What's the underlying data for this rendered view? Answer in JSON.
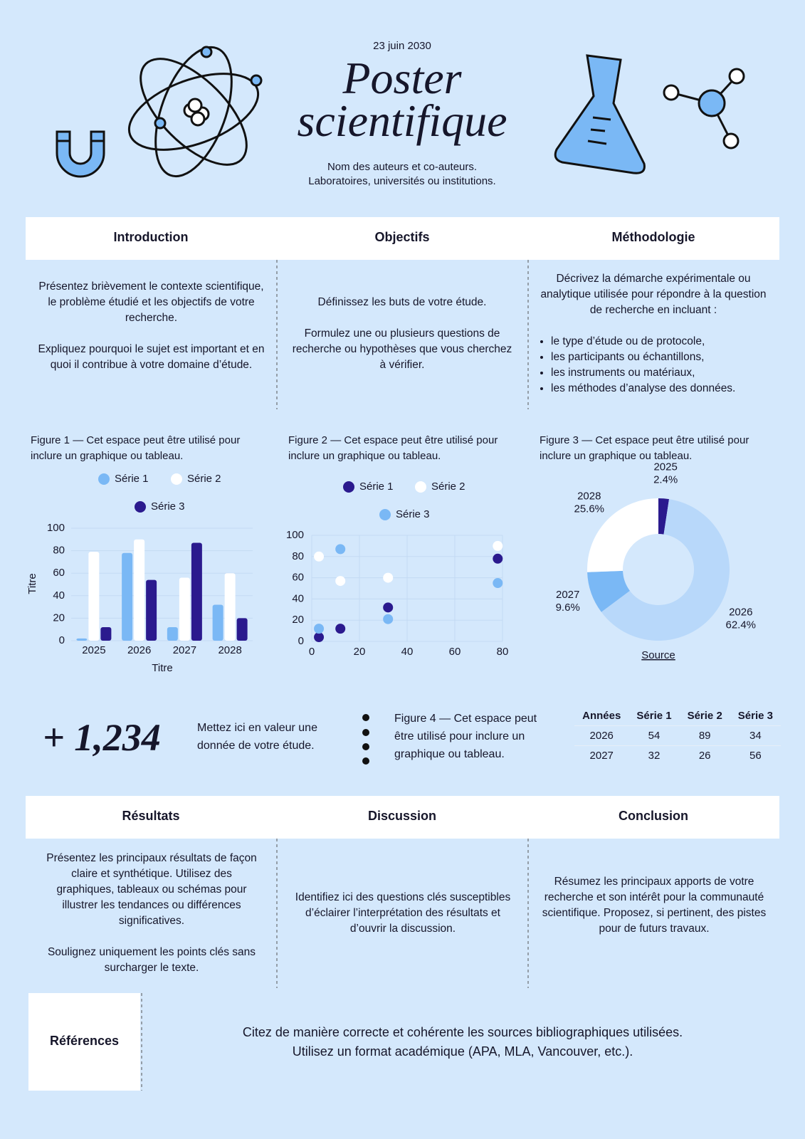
{
  "header": {
    "date": "23 juin 2030",
    "title": [
      "Poster",
      "scientifique"
    ],
    "authors": [
      "Nom des auteurs et co-auteurs.",
      "Laboratoires, universités ou institutions."
    ]
  },
  "sections_top": [
    {
      "heading": "Introduction",
      "paragraphs": [
        "Présentez brièvement le contexte scientifique, le problème étudié et les objectifs de votre recherche.",
        "Expliquez pourquoi le sujet est important et en quoi il contribue à votre domaine d’étude."
      ]
    },
    {
      "heading": "Objectifs",
      "paragraphs": [
        "Définissez les buts de votre étude.",
        "Formulez une ou plusieurs questions de recherche ou hypothèses que vous cherchez à vérifier."
      ]
    },
    {
      "heading": "Méthodologie",
      "paragraphs": [
        "Décrivez la démarche expérimentale ou analytique utilisée pour répondre à la question de recherche en incluant :"
      ],
      "list": [
        "le type d’étude ou de protocole,",
        "les participants ou échantillons,",
        "les instruments ou matériaux,",
        "les méthodes d’analyse des données."
      ]
    }
  ],
  "figures": [
    "Figure 1 — Cet espace peut être utilisé pour inclure un graphique ou tableau.",
    "Figure 2 — Cet espace peut être utilisé pour inclure un graphique ou tableau.",
    "Figure 3 — Cet espace peut être utilisé pour inclure un graphique ou tableau."
  ],
  "chart_data": [
    {
      "type": "bar",
      "categories": [
        "2025",
        "2026",
        "2027",
        "2028"
      ],
      "series": [
        {
          "name": "Série 1",
          "color": "#7ab8f5",
          "values": [
            2,
            78,
            12,
            32
          ]
        },
        {
          "name": "Série 2",
          "color": "#ffffff",
          "values": [
            79,
            90,
            56,
            60
          ]
        },
        {
          "name": "Série 3",
          "color": "#2b1a8e",
          "values": [
            12,
            54,
            87,
            20
          ]
        }
      ],
      "ylim": [
        0,
        100
      ],
      "yticks": [
        0,
        20,
        40,
        60,
        80,
        100
      ],
      "grid": true,
      "x_label": "Titre",
      "y_label": "Titre"
    },
    {
      "type": "scatter",
      "x": [
        3,
        12,
        32,
        78
      ],
      "series": [
        {
          "name": "Série 1",
          "color": "#2b1a8e",
          "values": [
            4,
            12,
            32,
            78
          ]
        },
        {
          "name": "Série 2",
          "color": "#ffffff",
          "values": [
            80,
            57,
            60,
            90
          ]
        },
        {
          "name": "Série 3",
          "color": "#7ab8f5",
          "values": [
            12,
            87,
            21,
            55
          ]
        }
      ],
      "xlim": [
        0,
        80
      ],
      "xticks": [
        0,
        20,
        40,
        60,
        80
      ],
      "ylim": [
        0,
        100
      ],
      "yticks": [
        0,
        20,
        40,
        60,
        80,
        100
      ],
      "grid": true
    },
    {
      "type": "donut",
      "categories": [
        "2025",
        "2026",
        "2027",
        "2028"
      ],
      "values": [
        2.4,
        62.4,
        9.6,
        25.6
      ],
      "value_labels": [
        "2.4%",
        "62.4%",
        "9.6%",
        "25.6%"
      ],
      "colors": [
        "#2b1a8e",
        "#b8d8fa",
        "#7ab8f5",
        "#ffffff"
      ]
    }
  ],
  "source": "Source",
  "highlight": {
    "number": "+ 1,234",
    "text": "Mettez ici en valeur une donnée de votre étude."
  },
  "figure4": "Figure 4 — Cet espace peut être utilisé pour inclure un graphique ou tableau.",
  "table": {
    "header": [
      "Années",
      "Série 1",
      "Série 2",
      "Série 3"
    ],
    "rows": [
      [
        2026,
        54,
        89,
        34
      ],
      [
        2027,
        32,
        26,
        56
      ]
    ]
  },
  "sections_bottom": [
    {
      "heading": "Résultats",
      "paragraphs": [
        "Présentez les principaux résultats de façon claire et synthétique. Utilisez des graphiques, tableaux ou schémas pour illustrer les tendances ou différences significatives.",
        "Soulignez uniquement les points clés sans surcharger le texte."
      ]
    },
    {
      "heading": "Discussion",
      "paragraphs": [
        "Identifiez ici des questions clés susceptibles d’éclairer l’interprétation des résultats et d’ouvrir la discussion."
      ]
    },
    {
      "heading": "Conclusion",
      "paragraphs": [
        "Résumez les principaux apports de votre recherche et son intérêt pour la communauté scientifique. Proposez, si pertinent, des pistes pour de futurs travaux."
      ]
    }
  ],
  "references": {
    "heading": "Références",
    "text": [
      "Citez de manière correcte et cohérente les sources bibliographiques utilisées.",
      "Utilisez un format académique (APA, MLA, Vancouver, etc.)."
    ]
  }
}
